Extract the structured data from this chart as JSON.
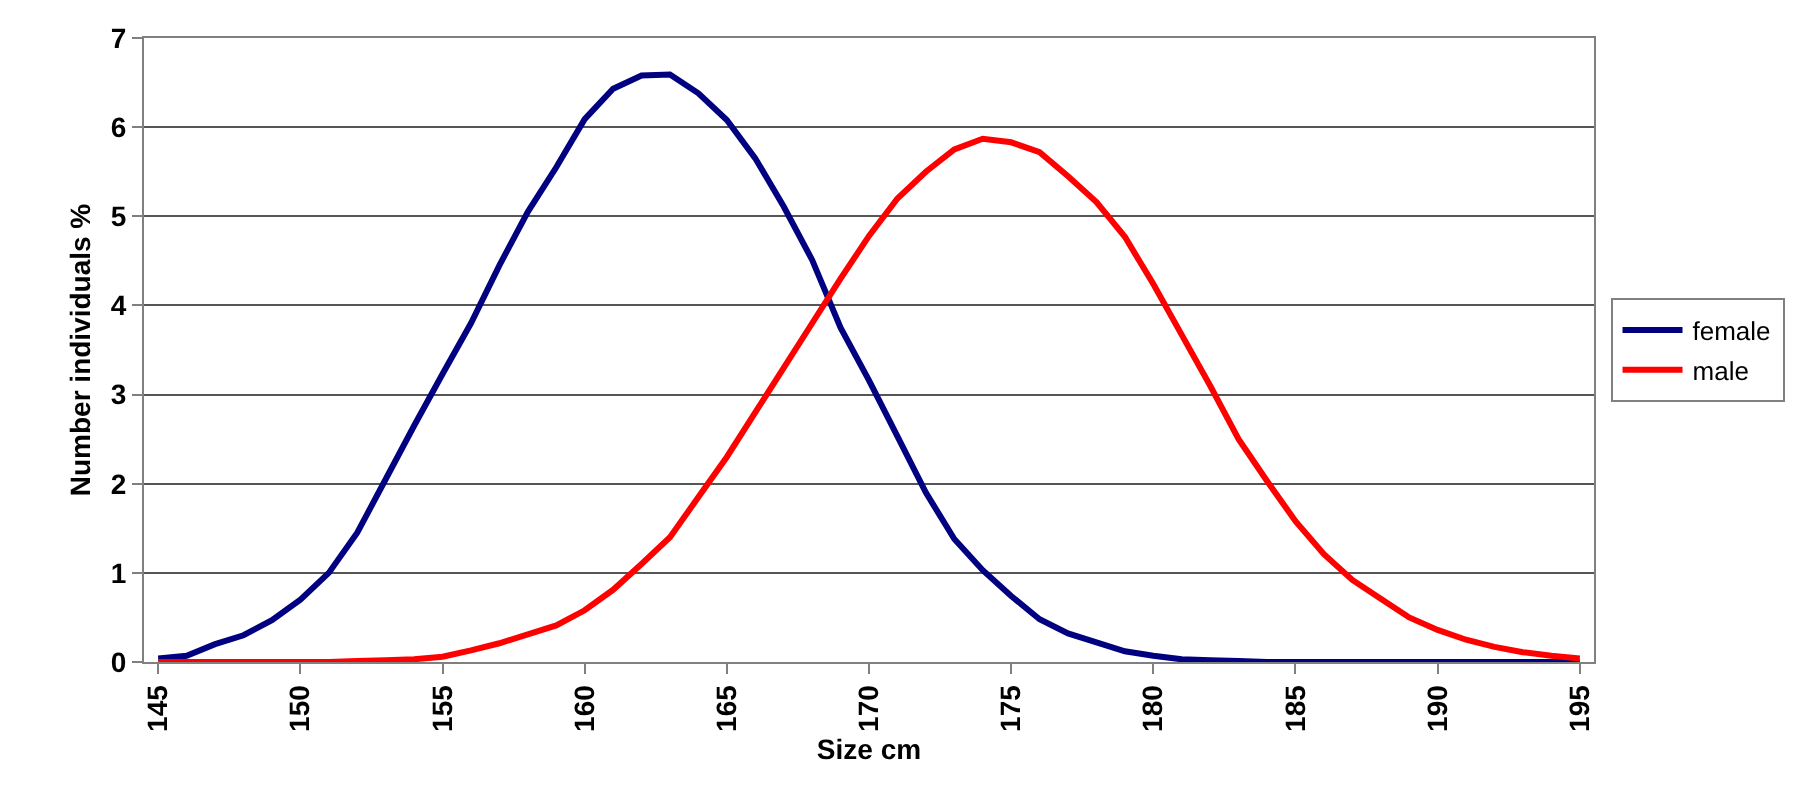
{
  "chart_data": {
    "type": "line",
    "xlabel": "Size cm",
    "ylabel": "Number individuals %",
    "x": [
      145,
      146,
      147,
      148,
      149,
      150,
      151,
      152,
      153,
      154,
      155,
      156,
      157,
      158,
      159,
      160,
      161,
      162,
      163,
      164,
      165,
      166,
      167,
      168,
      169,
      170,
      171,
      172,
      173,
      174,
      175,
      176,
      177,
      178,
      179,
      180,
      181,
      182,
      183,
      184,
      185,
      186,
      187,
      188,
      189,
      190,
      191,
      192,
      193,
      194,
      195
    ],
    "series": [
      {
        "name": "female",
        "color": "#000080",
        "values": [
          0.04,
          0.07,
          0.2,
          0.3,
          0.47,
          0.7,
          1.0,
          1.45,
          2.05,
          2.65,
          3.23,
          3.8,
          4.45,
          5.05,
          5.55,
          6.09,
          6.43,
          6.58,
          6.59,
          6.38,
          6.08,
          5.65,
          5.11,
          4.51,
          3.75,
          3.16,
          2.53,
          1.9,
          1.38,
          1.03,
          0.74,
          0.48,
          0.32,
          0.22,
          0.12,
          0.07,
          0.03,
          0.02,
          0.01,
          0,
          0,
          0,
          0,
          0,
          0,
          0,
          0,
          0,
          0,
          0,
          0
        ]
      },
      {
        "name": "male",
        "color": "#ff0000",
        "values": [
          0,
          0,
          0,
          0,
          0,
          0,
          0,
          0.01,
          0.02,
          0.03,
          0.06,
          0.13,
          0.21,
          0.31,
          0.41,
          0.58,
          0.81,
          1.1,
          1.4,
          1.85,
          2.3,
          2.8,
          3.3,
          3.8,
          4.3,
          4.78,
          5.2,
          5.5,
          5.75,
          5.87,
          5.83,
          5.72,
          5.45,
          5.16,
          4.77,
          4.24,
          3.67,
          3.1,
          2.5,
          2.03,
          1.58,
          1.21,
          0.92,
          0.71,
          0.5,
          0.36,
          0.25,
          0.17,
          0.11,
          0.07,
          0.04
        ]
      }
    ],
    "xlim": [
      144.5,
      195.5
    ],
    "xticks": [
      145,
      150,
      155,
      160,
      165,
      170,
      175,
      180,
      185,
      190,
      195
    ],
    "ylim": [
      0,
      7
    ],
    "yticks": [
      0,
      1,
      2,
      3,
      4,
      5,
      6,
      7
    ],
    "grid": "y",
    "legend": "right",
    "marker": "none",
    "line_style": "solid"
  }
}
